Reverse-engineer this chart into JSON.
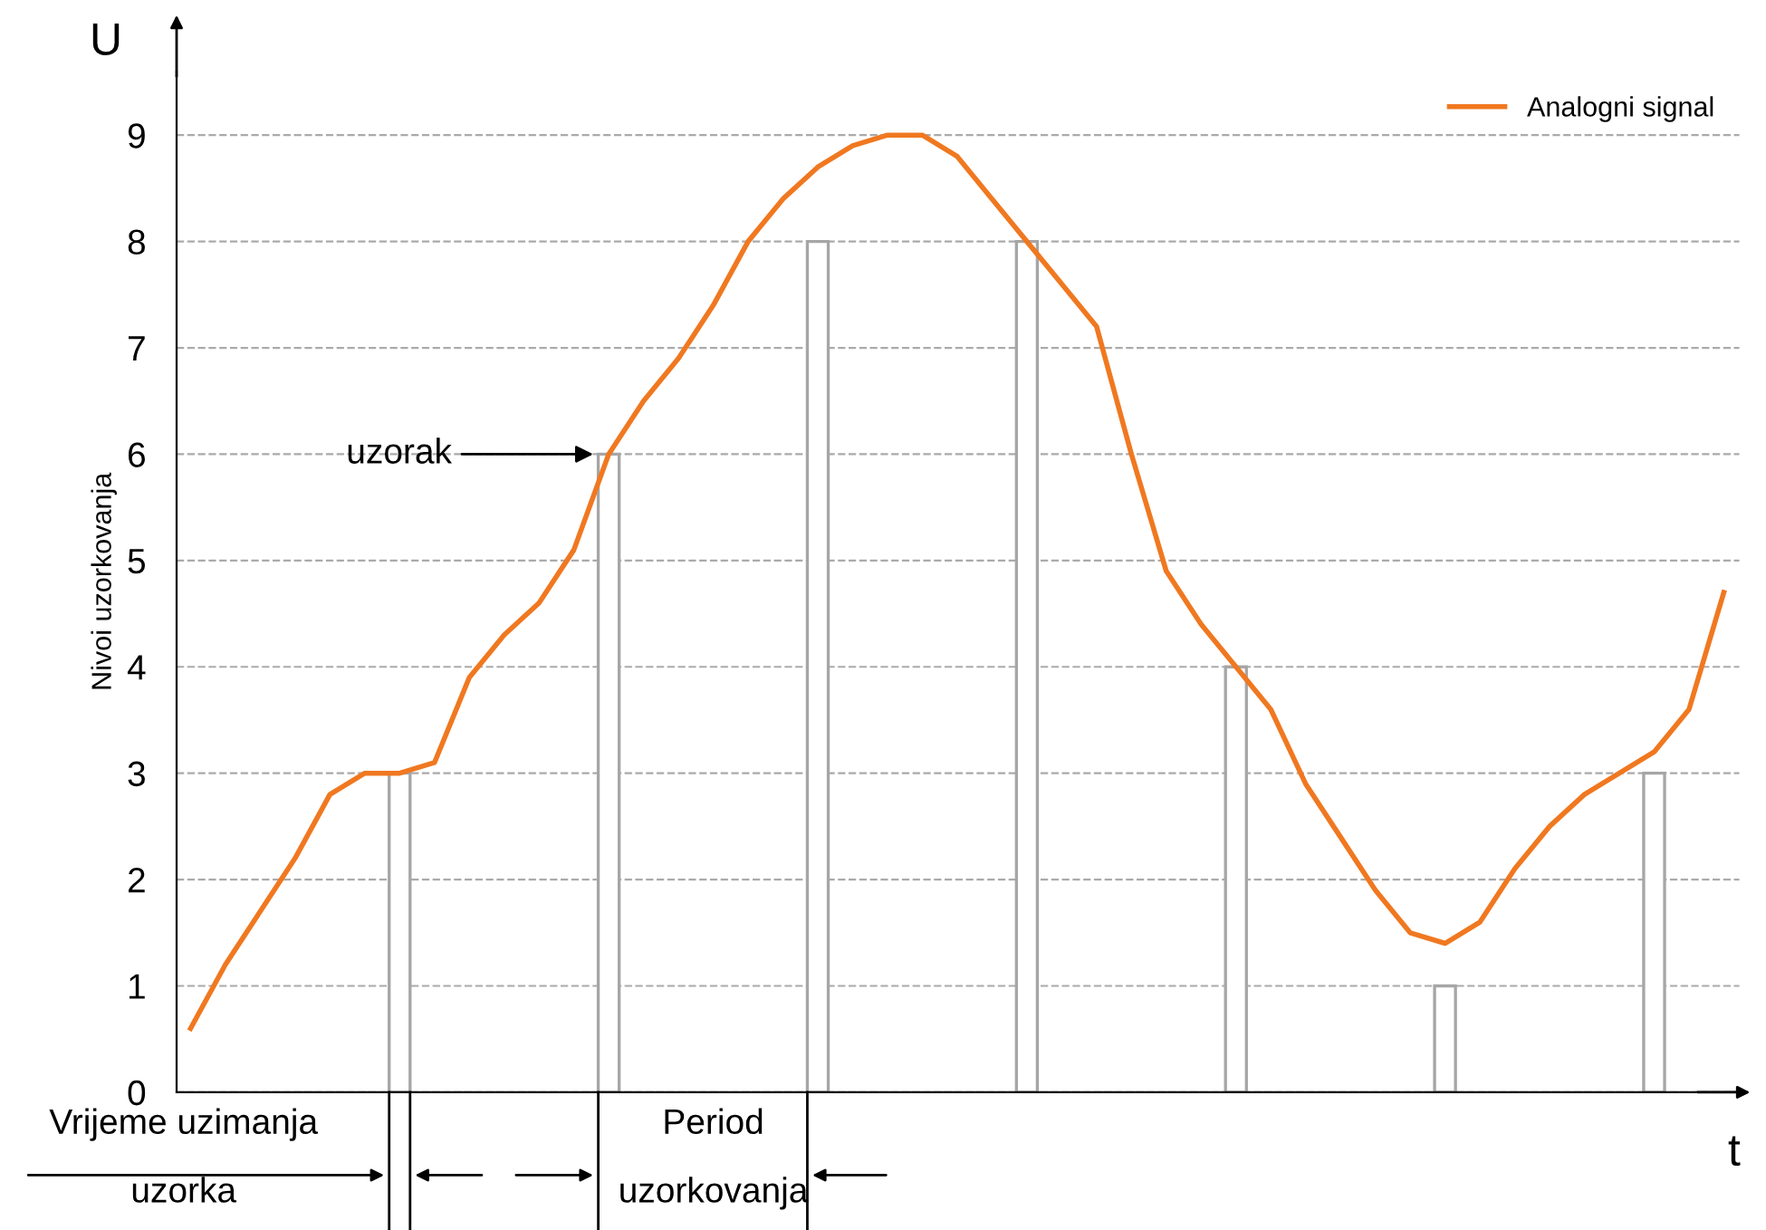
{
  "chart_data": {
    "type": "line",
    "xlabel": "t",
    "ylabel": "Nivoi uzorkovanja",
    "categories": [
      null,
      null,
      null,
      null,
      null,
      null,
      null,
      null,
      null,
      null,
      null,
      null,
      null,
      null,
      null,
      null,
      null,
      null,
      null,
      null,
      null,
      null,
      null,
      null,
      null,
      null,
      null,
      null,
      null,
      null,
      null,
      null,
      null,
      null,
      null,
      null,
      null,
      null,
      null,
      null,
      null,
      null,
      null,
      null,
      null
    ],
    "series": [
      {
        "name": "Analogni signal",
        "color": "#f07820",
        "values": [
          0.6,
          1.2,
          1.7,
          2.2,
          2.8,
          3.0,
          3.0,
          3.1,
          3.9,
          4.3,
          4.6,
          5.1,
          6.0,
          6.5,
          6.9,
          7.4,
          8.0,
          8.4,
          8.7,
          8.9,
          9.0,
          9.0,
          8.8,
          8.4,
          8.0,
          7.6,
          7.2,
          6.0,
          4.9,
          4.4,
          4.0,
          3.6,
          2.9,
          2.4,
          1.9,
          1.5,
          1.4,
          1.6,
          2.1,
          2.5,
          2.8,
          3.0,
          3.2,
          3.6,
          4.7
        ]
      },
      {
        "type": "bar",
        "color": "#a6a6a6",
        "values": [
          null,
          null,
          null,
          null,
          null,
          null,
          3,
          null,
          null,
          null,
          null,
          null,
          6,
          null,
          null,
          null,
          null,
          null,
          8,
          null,
          null,
          null,
          null,
          null,
          8,
          null,
          null,
          null,
          null,
          null,
          4,
          null,
          null,
          null,
          null,
          null,
          1,
          null,
          null,
          null,
          null,
          null,
          3,
          null,
          null
        ]
      }
    ],
    "ylim": [
      0,
      9.6
    ],
    "yticks": [
      0,
      1,
      2,
      3,
      4,
      5,
      6,
      7,
      8,
      9
    ],
    "grid": "y",
    "legend": "top right",
    "marker": "none",
    "line_style": "solid",
    "annotations": [
      "U",
      "uzorak",
      "Vrijeme uzimanja uzorka",
      "Period uzorkovanja"
    ]
  }
}
